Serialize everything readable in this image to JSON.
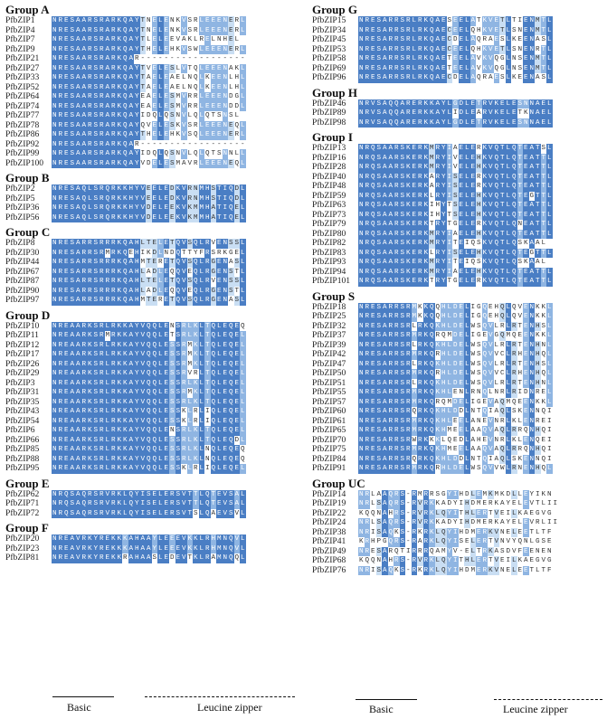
{
  "left": [
    {
      "title": "Group A",
      "rows": [
        [
          "PfbZIP1",
          "NRESAARSRARKQAYTNELENKVSRLEEENERL"
        ],
        [
          "PfbZIP4",
          "NRESAARSRARKQAYTNELENKVSRLEEENERL"
        ],
        [
          "PfbZIP7",
          "NRESAARSRARKQAYTLELEEVAKLRELNHEL"
        ],
        [
          "PfbZIP9",
          "NRESAARSRARKQAYTHELEHKVSWLEEENERL"
        ],
        [
          "PfbZIP21",
          "NRESAARSRARKQAR------------------"
        ],
        [
          "PfbZIP27",
          "NRESAARSRARKQAYTVELESLVTQLEEENAKL"
        ],
        [
          "PfbZIP33",
          "NRESAARSRARKQAYTAELEAELNQLKEENLHL"
        ],
        [
          "PfbZIP52",
          "NRESAARSRARKQAYTAELEAELNQLKEENLHL"
        ],
        [
          "PfbZIP64",
          "NRESAARSRARKQAYEAELESMVRRLEEENDGL"
        ],
        [
          "PfbZIP74",
          "NRESAARSRARKQAYEAELESMVRRLEEENDDL"
        ],
        [
          "PfbZIP77",
          "NRESAARSRARKQAYIDQLQSNVLQLQTSNSL"
        ],
        [
          "PfbZIP78",
          "NRESAARSRARKQAYQVELESKVSRLEEENEQL"
        ],
        [
          "PfbZIP86",
          "NRESAARSRARKQAYTHELEHKVSQLEEENERL"
        ],
        [
          "PfbZIP92",
          "NRESAARSRARKQAR------------------"
        ],
        [
          "PfbZIP99",
          "NRESAARSRARKQAYIDQLQSNVLQLQTSNNLL"
        ],
        [
          "PfbZIP100",
          "NRESAARSRARKQAYVDELESMAVRLEEENEQL"
        ]
      ]
    },
    {
      "title": "Group B",
      "rows": [
        [
          "PfbZIP2",
          "NRESAQLSRQRKKHYVEELEDKVRNMHSTIQDL"
        ],
        [
          "PfbZIP5",
          "NRESAQLSRQRKKHYVEELEDKVRNMHSTIQDL"
        ],
        [
          "PfbZIP36",
          "NRESAQLSRQRKKHYVDELEEKVKMMHATIQEL"
        ],
        [
          "PfbZIP56",
          "NRESAQLSRQRKKHYVDELEEKVKMMHATIQEL"
        ]
      ]
    },
    {
      "title": "Group C",
      "rows": [
        [
          "PfbZIP8",
          "NRESARRSRRRKQAHLTELETQVSQLRVENSSL"
        ],
        [
          "PfbZIP30",
          "NRESARRSRMRKQEHIKDLNDQTTYFRSRKGEL"
        ],
        [
          "PfbZIP44",
          "NRESARRSRRRKQAHMTERETQVSQLRGENASL"
        ],
        [
          "PfbZIP67",
          "NRESARRSRRRKQAHLADLEQQVEQLRGENSTL"
        ],
        [
          "PfbZIP87",
          "NRESARRSRRRKQAHLTELETQVSQLRVENSSL"
        ],
        [
          "PfbZIP90",
          "NRESARRSRRRKQAHLADLEQQVEQLRGENSTL"
        ],
        [
          "PfbZIP97",
          "NRESARRSRRRKQAHMTERETQVSQLRGENASL"
        ]
      ]
    },
    {
      "title": "Group D",
      "rows": [
        [
          "PfbZIP10",
          "NREAARKSRLRKKAYVQQLENSRLKLTQLEQEQ"
        ],
        [
          "PfbZIP11",
          "NREAARKSRMRKKAYVQQLETSRLKLTQLEQEL"
        ],
        [
          "PfbZIP12",
          "NREAARKSRLRKKAYVQQLESSRMKLTQLEQEL"
        ],
        [
          "PfbZIP17",
          "NREAARKSRLRKKAYVQQLESSRMKLTQLEQEL"
        ],
        [
          "PfbZIP26",
          "NREAARKSRLRKKAYVQQLESSRMKLTQLEQEL"
        ],
        [
          "PfbZIP29",
          "NREAARKSRLRKKAYVQQLESSRVRLTQLEQEL"
        ],
        [
          "PfbZIP3",
          "NREAARKSRLRKKAYVQQLESSRLKLTQLEQEL"
        ],
        [
          "PfbZIP31",
          "NREAARKSRLRKKAYVQQLESSRMKLTQLEQEL"
        ],
        [
          "PfbZIP35",
          "NREAARKSRLRKKAYVQQLESSRLKLTQLEQEL"
        ],
        [
          "PfbZIP43",
          "NREAARKSRLRKKAYVQQLESSKLRLIQLEQEL"
        ],
        [
          "PfbZIP54",
          "NREAARKSRLRKKAYVQQLESSKLRLIQLEQEL"
        ],
        [
          "PfbZIP6",
          "NREAARKSRLRKKAYVQQLENSRLKLTQLEQEL"
        ],
        [
          "PfbZIP66",
          "NREAARKSRLRKKAYVQQLESSRLKLTQLEQDL"
        ],
        [
          "PfbZIP85",
          "NREAARKSRLRKKAYVQQLESSRLKLNQLEQEQ"
        ],
        [
          "PfbZIP88",
          "NREAARKSRLRKKAYVQQLESSRLKLNQLEQEQ"
        ],
        [
          "PfbZIP95",
          "NREAARKSRLRKKAYVQQLESSKLRLIQLEQEL"
        ]
      ]
    },
    {
      "title": "Group E",
      "rows": [
        [
          "PfbZIP62",
          "NRQSAQRSRVRKLQYISELERSVTTLQTEVSAL"
        ],
        [
          "PfbZIP71",
          "NRQSAQRSRVRKLQYISELERSVTTLQTEVSAL"
        ],
        [
          "PfbZIP72",
          "NRQSAQRSRVRKLQYISELERSVTSLQAEVSVL"
        ]
      ]
    },
    {
      "title": "Group F",
      "rows": [
        [
          "PfbZIP20",
          "NREAVRKYREKKKAHAAYLEEEVKKLRHMNQVL"
        ],
        [
          "PfbZIP23",
          "NREAVRKYREKKKAHAAYLEEEVKKLRHMNQVL"
        ],
        [
          "PfbZIP81",
          "NREAVRKYREKKRAHAASLEDEVTKLRAMNQQL"
        ]
      ]
    }
  ],
  "right": [
    {
      "title": "Group G",
      "rows": [
        [
          "PfbZIP15",
          "NRESARRSRLRKQAESEELATKVETLTIENMTL"
        ],
        [
          "PfbZIP34",
          "NRESARRSRLRKQAECEELQHKVETLSNENMTL"
        ],
        [
          "PfbZIP45",
          "NRESARRSRLRKQAECDELAQRAESLKEENASL"
        ],
        [
          "PfbZIP53",
          "NRESARRSRLRKQAECEELQHKVETLSNENRTL"
        ],
        [
          "PfbZIP58",
          "NRESARRSRLRKQAETEELAVKVQGLNSENMTL"
        ],
        [
          "PfbZIP69",
          "NRESARRSRLRKQAETEELAVKVQGLNSENMTL"
        ],
        [
          "PfbZIP96",
          "NRESARRSRLRKQAECDELAQRAESLKEENASL"
        ]
      ]
    },
    {
      "title": "Group H",
      "rows": [
        [
          "PfbZIP46",
          "NRVSAQQARERKKAYLGDLETRVKELESNNAEL"
        ],
        [
          "PfbZIP89",
          "NRVSAQQARERKKAYLIDLEARVKELETKNAEL"
        ],
        [
          "PfbZIP98",
          "NRVSAQQARERKKAYLGDLETRVKELESNNAEL"
        ]
      ]
    },
    {
      "title": "Group I",
      "rows": [
        [
          "PfbZIP13",
          "NRQSAARSKERKMRYIAELERKVQTLQTEATSL"
        ],
        [
          "PfbZIP16",
          "NRQSAARSKERKMRYIVELEHKVQTLQTEATTL"
        ],
        [
          "PfbZIP28",
          "NRQSAARSKERKMRYIVELEHKVQTLQTEATTL"
        ],
        [
          "PfbZIP40",
          "NRQSAARSKERKARYISELERKVQTLQTEATTL"
        ],
        [
          "PfbZIP48",
          "NRQSAARSKERKARYISELERKVQTLQTEATTL"
        ],
        [
          "PfbZIP59",
          "NRQSAARSKERKLRYISELEHKVQTLQTEGTTL"
        ],
        [
          "PfbZIP63",
          "NRQSAARSKERKIHYTSELEHKVQTLQTEATTL"
        ],
        [
          "PfbZIP73",
          "NRQSAARSKERKIHYTSELEHKVQTLQTEATTL"
        ],
        [
          "PfbZIP79",
          "NRQSAARSKERKTRYTGELERKVQTLQNEATTL"
        ],
        [
          "PfbZIP80",
          "NRQSAARSKERKMRYIAELEHKVQTLQTEATTL"
        ],
        [
          "PfbZIP82",
          "NRQSAARSKERKMRYITEIQSKVQTLQSKAAL"
        ],
        [
          "PfbZIP83",
          "NRQSAARSKERKLRYISELEHKVQTLQTEGTTL"
        ],
        [
          "PfbZIP93",
          "NRQSAARSKERKMRYITEIQSKVQTLQSKAAL"
        ],
        [
          "PfbZIP94",
          "NRQSAARSKERKMRYIAELEHKVQTLQTEATTL"
        ],
        [
          "PfbZIP101",
          "NRQSAARSKERKTRYTGELERKVQTLQTEATTL"
        ]
      ]
    },
    {
      "title": "Group S",
      "rows": [
        [
          "PfbZIP18",
          "NRESARRSRMKKQQHLDELIGQEHQLQVENKKL"
        ],
        [
          "PfbZIP25",
          "NRESARRSRMKKQQHLDELIGQEHQLQVENKKL"
        ],
        [
          "PfbZIP32",
          "NRESARRSRLRKQKHLDELWSQVLRLRTENHSL"
        ],
        [
          "PfbZIP37",
          "NRESARRSRMRKQRQMDELIGEVGQMQEENKKL"
        ],
        [
          "PfbZIP39",
          "NRESARRSRLRKQKHLDELWSQVLRLRTENHNL"
        ],
        [
          "PfbZIP42",
          "NRESARRSRMRKQRHLDELWSQVVCLRHENHQL"
        ],
        [
          "PfbZIP47",
          "NRESARRSRLRKQKHLDELWSQVLRLRTENHSL"
        ],
        [
          "PfbZIP50",
          "NRESARRSRMRKQRHLDELWSQVVCLRHENHQL"
        ],
        [
          "PfbZIP51",
          "NRESARRSRLRKQKHLDELWSQVLRLRTENHNL"
        ],
        [
          "PfbZIP55",
          "NRESARRSRMRKQKHLENLRNQLNRLRIDNREL"
        ],
        [
          "PfbZIP57",
          "NRESARRSRMRKQRQMDELIGEVAQMQEENKKL"
        ],
        [
          "PfbZIP60",
          "NRESARRSRQRKQKHLDDLNTQIAQLSKENNQI"
        ],
        [
          "PfbZIP61",
          "NRESARRSRMRKQKHLEELANEVNRLKLENREI"
        ],
        [
          "PfbZIP65",
          "NRESARRSRMRKQKHMEELAAQVAQLRRQNHQI"
        ],
        [
          "PfbZIP70",
          "NRESARRSRWRKKKLQEDLAHEVNRLKLENQEI"
        ],
        [
          "PfbZIP75",
          "NRESARRSRMRKQKHMEELAAQVAQLRRQNHQI"
        ],
        [
          "PfbZIP84",
          "NRESARRSRQRKQKHLDDLNTQIAQLSKENNQI"
        ],
        [
          "PfbZIP91",
          "NRESARRSRMRKQRHLDELWSQVVWLRNENHQL"
        ]
      ]
    },
    {
      "title": "Group UC",
      "rows": [
        [
          "PfbZIP14",
          "NRLAAQRS-RMRRSGYIHDLEMKMKDLLEYIKN"
        ],
        [
          "PfbZIP19",
          "NRLSAQRS-RVRKKADYIHDMERKAYELEVTLII"
        ],
        [
          "PfbZIP22",
          "KQQNAHRS-RVRKLQYITHLERTVEILKAEGVG"
        ],
        [
          "PfbZIP24",
          "NRLSAQRS-RVRKKADYIHDMERKAYELEVRLII"
        ],
        [
          "PfbZIP38",
          "NRISAQKS-RKRKLQYIHDMERKVNELEETLTF"
        ],
        [
          "PfbZIP41",
          "KRHPGQRS-RARKLQYISELERTVNVYQNLGSE"
        ],
        [
          "PfbZIP49",
          "NRESARQTIRRRQAMYV-ELTRKASDVFEENEN"
        ],
        [
          "PfbZIP68",
          "KQQNAHRS-RVRKLQYITHLERTVEILKAEGVG"
        ],
        [
          "PfbZIP76",
          "NRISAQKS-RKRKLQYIHDMERKVNELEETLTF"
        ]
      ]
    }
  ],
  "annotations": {
    "basic_label": "Basic",
    "leucine_label": "Leucine zipper"
  }
}
